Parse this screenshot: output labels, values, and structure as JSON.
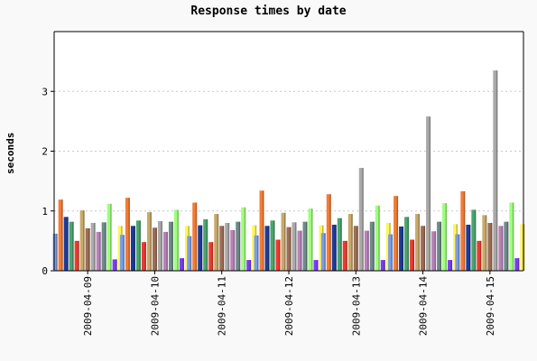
{
  "chart_data": {
    "type": "bar",
    "title": "Response times by date",
    "xlabel": "",
    "ylabel": "seconds",
    "ylim": [
      0,
      4
    ],
    "yticks": [
      0,
      1,
      2,
      3
    ],
    "grid": true,
    "legend": "none",
    "categories": [
      "2009-04-09",
      "2009-04-10",
      "2009-04-11",
      "2009-04-12",
      "2009-04-13",
      "2009-04-14",
      "2009-04-15"
    ],
    "series": [
      {
        "color": "#7b9ee6",
        "values": [
          0.62,
          0.6,
          0.58,
          0.59,
          0.63,
          0.61,
          0.61
        ]
      },
      {
        "color": "#f47b35",
        "values": [
          1.19,
          1.22,
          1.14,
          1.34,
          1.28,
          1.25,
          1.33
        ]
      },
      {
        "color": "#1e3c96",
        "values": [
          0.9,
          0.75,
          0.76,
          0.75,
          0.77,
          0.74,
          0.77
        ]
      },
      {
        "color": "#4ba56d",
        "values": [
          0.82,
          0.84,
          0.86,
          0.84,
          0.88,
          0.9,
          1.02
        ]
      },
      {
        "color": "#ee3b2f",
        "values": [
          0.5,
          0.48,
          0.48,
          0.52,
          0.5,
          0.52,
          0.5
        ]
      },
      {
        "color": "#c9a96a",
        "values": [
          1.01,
          0.98,
          0.95,
          0.97,
          0.95,
          0.95,
          0.93
        ]
      },
      {
        "color": "#9e6e55",
        "values": [
          0.71,
          0.72,
          0.75,
          0.73,
          0.75,
          0.75,
          0.8
        ]
      },
      {
        "color": "#aaaaaa",
        "values": [
          0.8,
          0.83,
          0.8,
          0.81,
          1.72,
          2.58,
          3.35
        ]
      },
      {
        "color": "#b882b8",
        "values": [
          0.65,
          0.65,
          0.68,
          0.67,
          0.67,
          0.66,
          0.75
        ]
      },
      {
        "color": "#6f8a8a",
        "values": [
          0.81,
          0.82,
          0.82,
          0.82,
          0.82,
          0.82,
          0.82
        ]
      },
      {
        "color": "#9dff7b",
        "values": [
          1.12,
          1.02,
          1.06,
          1.04,
          1.09,
          1.13,
          1.14
        ]
      },
      {
        "color": "#7c3cf2",
        "values": [
          0.19,
          0.21,
          0.18,
          0.18,
          0.18,
          0.18,
          0.21
        ]
      },
      {
        "color": "#fff55a",
        "values": [
          0.75,
          0.75,
          0.76,
          0.76,
          0.8,
          0.78,
          0.78
        ]
      }
    ]
  }
}
